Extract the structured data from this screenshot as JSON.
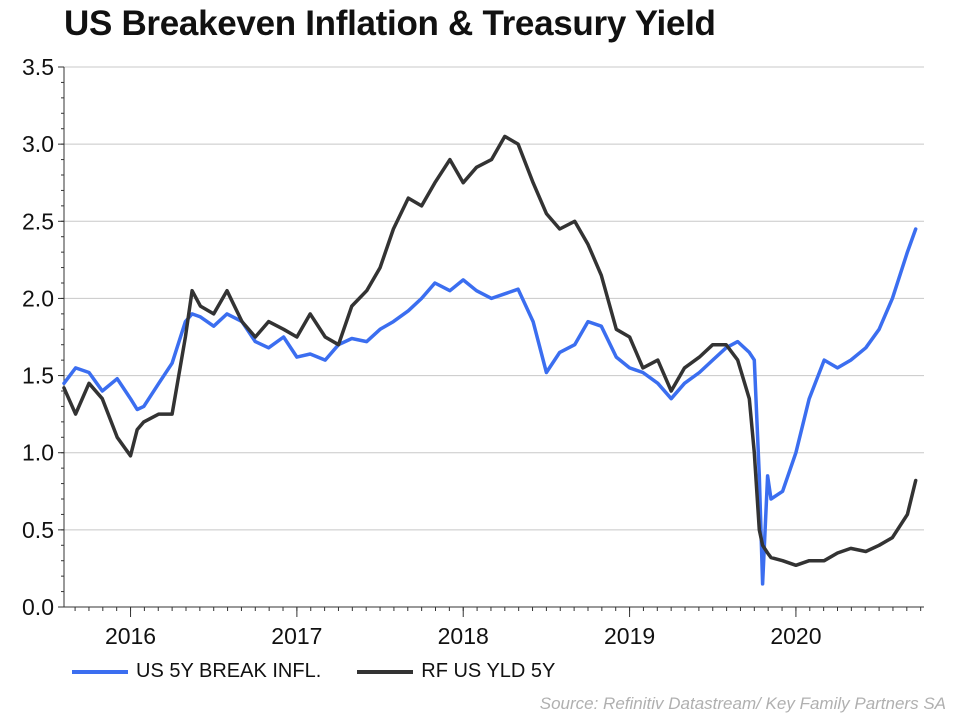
{
  "chart_data": {
    "type": "line",
    "title": "US Breakeven Inflation & Treasury Yield",
    "xlabel": "",
    "ylabel": "",
    "ylim": [
      0.0,
      3.5
    ],
    "yticks": [
      "0.0",
      "0.5",
      "1.0",
      "1.5",
      "2.0",
      "2.5",
      "3.0",
      "3.5"
    ],
    "xlim": [
      2015.6,
      2020.77
    ],
    "xticks": [
      {
        "label": "2016",
        "pos": 2016.0
      },
      {
        "label": "2017",
        "pos": 2017.0
      },
      {
        "label": "2018",
        "pos": 2018.0
      },
      {
        "label": "2019",
        "pos": 2019.0
      },
      {
        "label": "2020",
        "pos": 2020.0
      }
    ],
    "grid": "horizontal",
    "legend_position": "bottom-left",
    "series": [
      {
        "name": "US 5Y BREAK INFL.",
        "color": "#3b6ef0",
        "x": [
          2015.6,
          2015.67,
          2015.75,
          2015.83,
          2015.92,
          2016.0,
          2016.04,
          2016.08,
          2016.17,
          2016.25,
          2016.33,
          2016.37,
          2016.42,
          2016.5,
          2016.58,
          2016.67,
          2016.75,
          2016.83,
          2016.92,
          2017.0,
          2017.08,
          2017.17,
          2017.25,
          2017.33,
          2017.42,
          2017.5,
          2017.58,
          2017.67,
          2017.75,
          2017.83,
          2017.92,
          2018.0,
          2018.08,
          2018.17,
          2018.25,
          2018.33,
          2018.42,
          2018.5,
          2018.58,
          2018.67,
          2018.75,
          2018.83,
          2018.92,
          2019.0,
          2019.08,
          2019.17,
          2019.25,
          2019.33,
          2019.42,
          2019.5,
          2019.58,
          2019.65,
          2019.72,
          2019.75,
          2019.78,
          2019.8,
          2019.83,
          2019.85,
          2019.92,
          2020.0,
          2020.08,
          2020.17,
          2020.25,
          2020.33,
          2020.42,
          2020.5,
          2020.58,
          2020.67,
          2020.72
        ],
        "values": [
          1.45,
          1.55,
          1.52,
          1.4,
          1.48,
          1.35,
          1.28,
          1.3,
          1.45,
          1.58,
          1.85,
          1.9,
          1.88,
          1.82,
          1.9,
          1.85,
          1.72,
          1.68,
          1.75,
          1.62,
          1.64,
          1.6,
          1.7,
          1.74,
          1.72,
          1.8,
          1.85,
          1.92,
          2.0,
          2.1,
          2.05,
          2.12,
          2.05,
          2.0,
          2.03,
          2.06,
          1.85,
          1.52,
          1.65,
          1.7,
          1.85,
          1.82,
          1.62,
          1.55,
          1.52,
          1.45,
          1.35,
          1.45,
          1.52,
          1.6,
          1.68,
          1.72,
          1.65,
          1.6,
          0.85,
          0.15,
          0.85,
          0.7,
          0.75,
          1.0,
          1.35,
          1.6,
          1.55,
          1.6,
          1.68,
          1.8,
          2.0,
          2.3,
          2.45
        ]
      },
      {
        "name": "RF US YLD 5Y",
        "color": "#333333",
        "x": [
          2015.6,
          2015.67,
          2015.75,
          2015.83,
          2015.92,
          2016.0,
          2016.04,
          2016.08,
          2016.17,
          2016.25,
          2016.33,
          2016.37,
          2016.42,
          2016.5,
          2016.58,
          2016.67,
          2016.75,
          2016.83,
          2016.92,
          2017.0,
          2017.08,
          2017.17,
          2017.25,
          2017.33,
          2017.42,
          2017.5,
          2017.58,
          2017.67,
          2017.75,
          2017.83,
          2017.92,
          2018.0,
          2018.08,
          2018.17,
          2018.25,
          2018.33,
          2018.42,
          2018.5,
          2018.58,
          2018.67,
          2018.75,
          2018.83,
          2018.92,
          2019.0,
          2019.08,
          2019.17,
          2019.25,
          2019.33,
          2019.42,
          2019.5,
          2019.58,
          2019.65,
          2019.72,
          2019.75,
          2019.78,
          2019.8,
          2019.83,
          2019.85,
          2019.92,
          2020.0,
          2020.08,
          2020.17,
          2020.25,
          2020.33,
          2020.42,
          2020.5,
          2020.58,
          2020.67,
          2020.72
        ],
        "values": [
          1.42,
          1.25,
          1.45,
          1.35,
          1.1,
          0.98,
          1.15,
          1.2,
          1.25,
          1.25,
          1.75,
          2.05,
          1.95,
          1.9,
          2.05,
          1.85,
          1.75,
          1.85,
          1.8,
          1.75,
          1.9,
          1.75,
          1.7,
          1.95,
          2.05,
          2.2,
          2.45,
          2.65,
          2.6,
          2.75,
          2.9,
          2.75,
          2.85,
          2.9,
          3.05,
          3.0,
          2.75,
          2.55,
          2.45,
          2.5,
          2.35,
          2.15,
          1.8,
          1.75,
          1.55,
          1.6,
          1.4,
          1.55,
          1.62,
          1.7,
          1.7,
          1.6,
          1.35,
          1.0,
          0.5,
          0.4,
          0.35,
          0.32,
          0.3,
          0.27,
          0.3,
          0.3,
          0.35,
          0.38,
          0.36,
          0.4,
          0.45,
          0.6,
          0.82
        ]
      }
    ]
  },
  "legend": [
    {
      "label": "US 5Y BREAK INFL.",
      "color": "#3b6ef0"
    },
    {
      "label": "RF US YLD 5Y",
      "color": "#333333"
    }
  ],
  "source_note": "Source: Refinitiv Datastream/ Key Family Partners SA"
}
